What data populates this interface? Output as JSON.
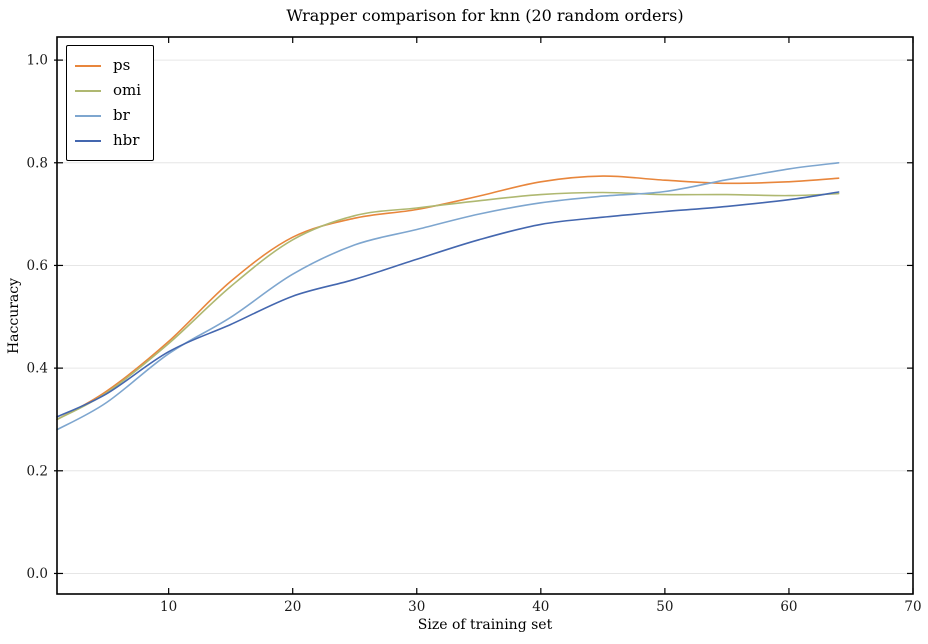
{
  "figure": {
    "background": "#ffffff",
    "spine_color": "#000000",
    "grid_color": "#e6e6e6"
  },
  "chart_data": {
    "type": "line",
    "title": "Wrapper comparison for knn (20 random orders)",
    "xlabel": "Size of training set",
    "ylabel": "Haccuracy",
    "xlim": [
      1,
      70
    ],
    "ylim": [
      -0.04,
      1.045
    ],
    "xticks": [
      10,
      20,
      30,
      40,
      50,
      60,
      70
    ],
    "yticks": [
      0.0,
      0.2,
      0.4,
      0.6,
      0.8,
      1.0
    ],
    "ytick_labels": [
      "0.0",
      "0.2",
      "0.4",
      "0.6",
      "0.8",
      "1.0"
    ],
    "grid": "horizontal",
    "legend_position": "upper-left",
    "x": [
      1,
      5,
      10,
      15,
      20,
      25,
      30,
      35,
      40,
      45,
      50,
      55,
      60,
      64
    ],
    "series": [
      {
        "name": "ps",
        "color": "#e8863c",
        "values": [
          0.3,
          0.355,
          0.452,
          0.569,
          0.655,
          0.692,
          0.709,
          0.735,
          0.763,
          0.774,
          0.766,
          0.76,
          0.763,
          0.77
        ]
      },
      {
        "name": "omi",
        "color": "#afb871",
        "values": [
          0.3,
          0.352,
          0.448,
          0.559,
          0.65,
          0.697,
          0.712,
          0.726,
          0.738,
          0.742,
          0.738,
          0.738,
          0.736,
          0.74
        ]
      },
      {
        "name": "br",
        "color": "#7ea6cf",
        "values": [
          0.28,
          0.333,
          0.428,
          0.499,
          0.583,
          0.64,
          0.67,
          0.7,
          0.722,
          0.735,
          0.744,
          0.767,
          0.788,
          0.8
        ]
      },
      {
        "name": "hbr",
        "color": "#4467af",
        "values": [
          0.305,
          0.35,
          0.432,
          0.485,
          0.54,
          0.573,
          0.612,
          0.65,
          0.68,
          0.694,
          0.705,
          0.715,
          0.728,
          0.743
        ]
      }
    ]
  }
}
